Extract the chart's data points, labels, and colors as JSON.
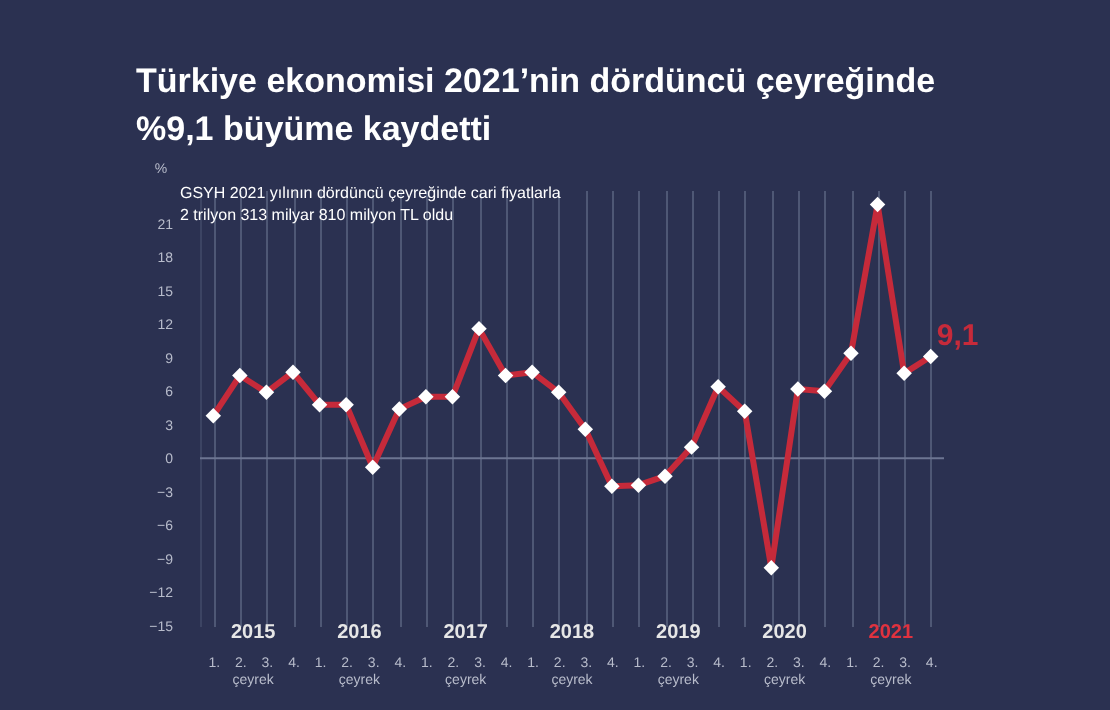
{
  "chart_data": {
    "type": "line",
    "title": "Türkiye ekonomisi 2021’nin dördüncü çeyreğinde\n%9,1 büyüme kaydetti",
    "subtitle": "GSYH 2021 yılının dördüncü çeyreğinde cari fiyatlarla\n2 trilyon 313 milyar 810 milyon TL oldu",
    "ylabel": "%",
    "categories": [
      "1.",
      "2.",
      "3.",
      "4.",
      "1.",
      "2.",
      "3.",
      "4.",
      "1.",
      "2.",
      "3.",
      "4.",
      "1.",
      "2.",
      "3.",
      "4.",
      "1.",
      "2.",
      "3.",
      "4.",
      "1.",
      "2.",
      "3.",
      "4.",
      "1.",
      "2.",
      "3.",
      "4."
    ],
    "series": [
      {
        "color": "#c62a3a",
        "values": [
          3.8,
          7.4,
          5.9,
          7.7,
          4.8,
          4.8,
          -0.8,
          4.4,
          5.5,
          5.5,
          11.6,
          7.4,
          7.7,
          5.9,
          2.6,
          -2.5,
          -2.4,
          -1.6,
          1.0,
          6.4,
          4.2,
          -9.8,
          6.2,
          6.0,
          9.4,
          22.7,
          7.6,
          9.1
        ],
        "value_labels": [
          null,
          null,
          null,
          null,
          null,
          null,
          null,
          null,
          null,
          null,
          null,
          null,
          null,
          null,
          null,
          null,
          null,
          null,
          null,
          null,
          null,
          null,
          null,
          null,
          null,
          null,
          null,
          "9,1"
        ]
      }
    ],
    "ylim": [
      -15,
      24
    ],
    "yticks": [
      -15,
      -12,
      -9,
      -6,
      -3,
      0,
      3,
      6,
      9,
      12,
      15,
      18,
      21
    ],
    "ref_lines": [
      {
        "axis": "y",
        "value": 0
      }
    ],
    "annotations": [
      "2015",
      "2016",
      "2017",
      "2018",
      "2019",
      "2020",
      "2021",
      "çeyrek",
      "çeyrek",
      "çeyrek",
      "çeyrek",
      "çeyrek",
      "çeyrek",
      "çeyrek"
    ],
    "grid": "x",
    "marker": "diamond"
  }
}
